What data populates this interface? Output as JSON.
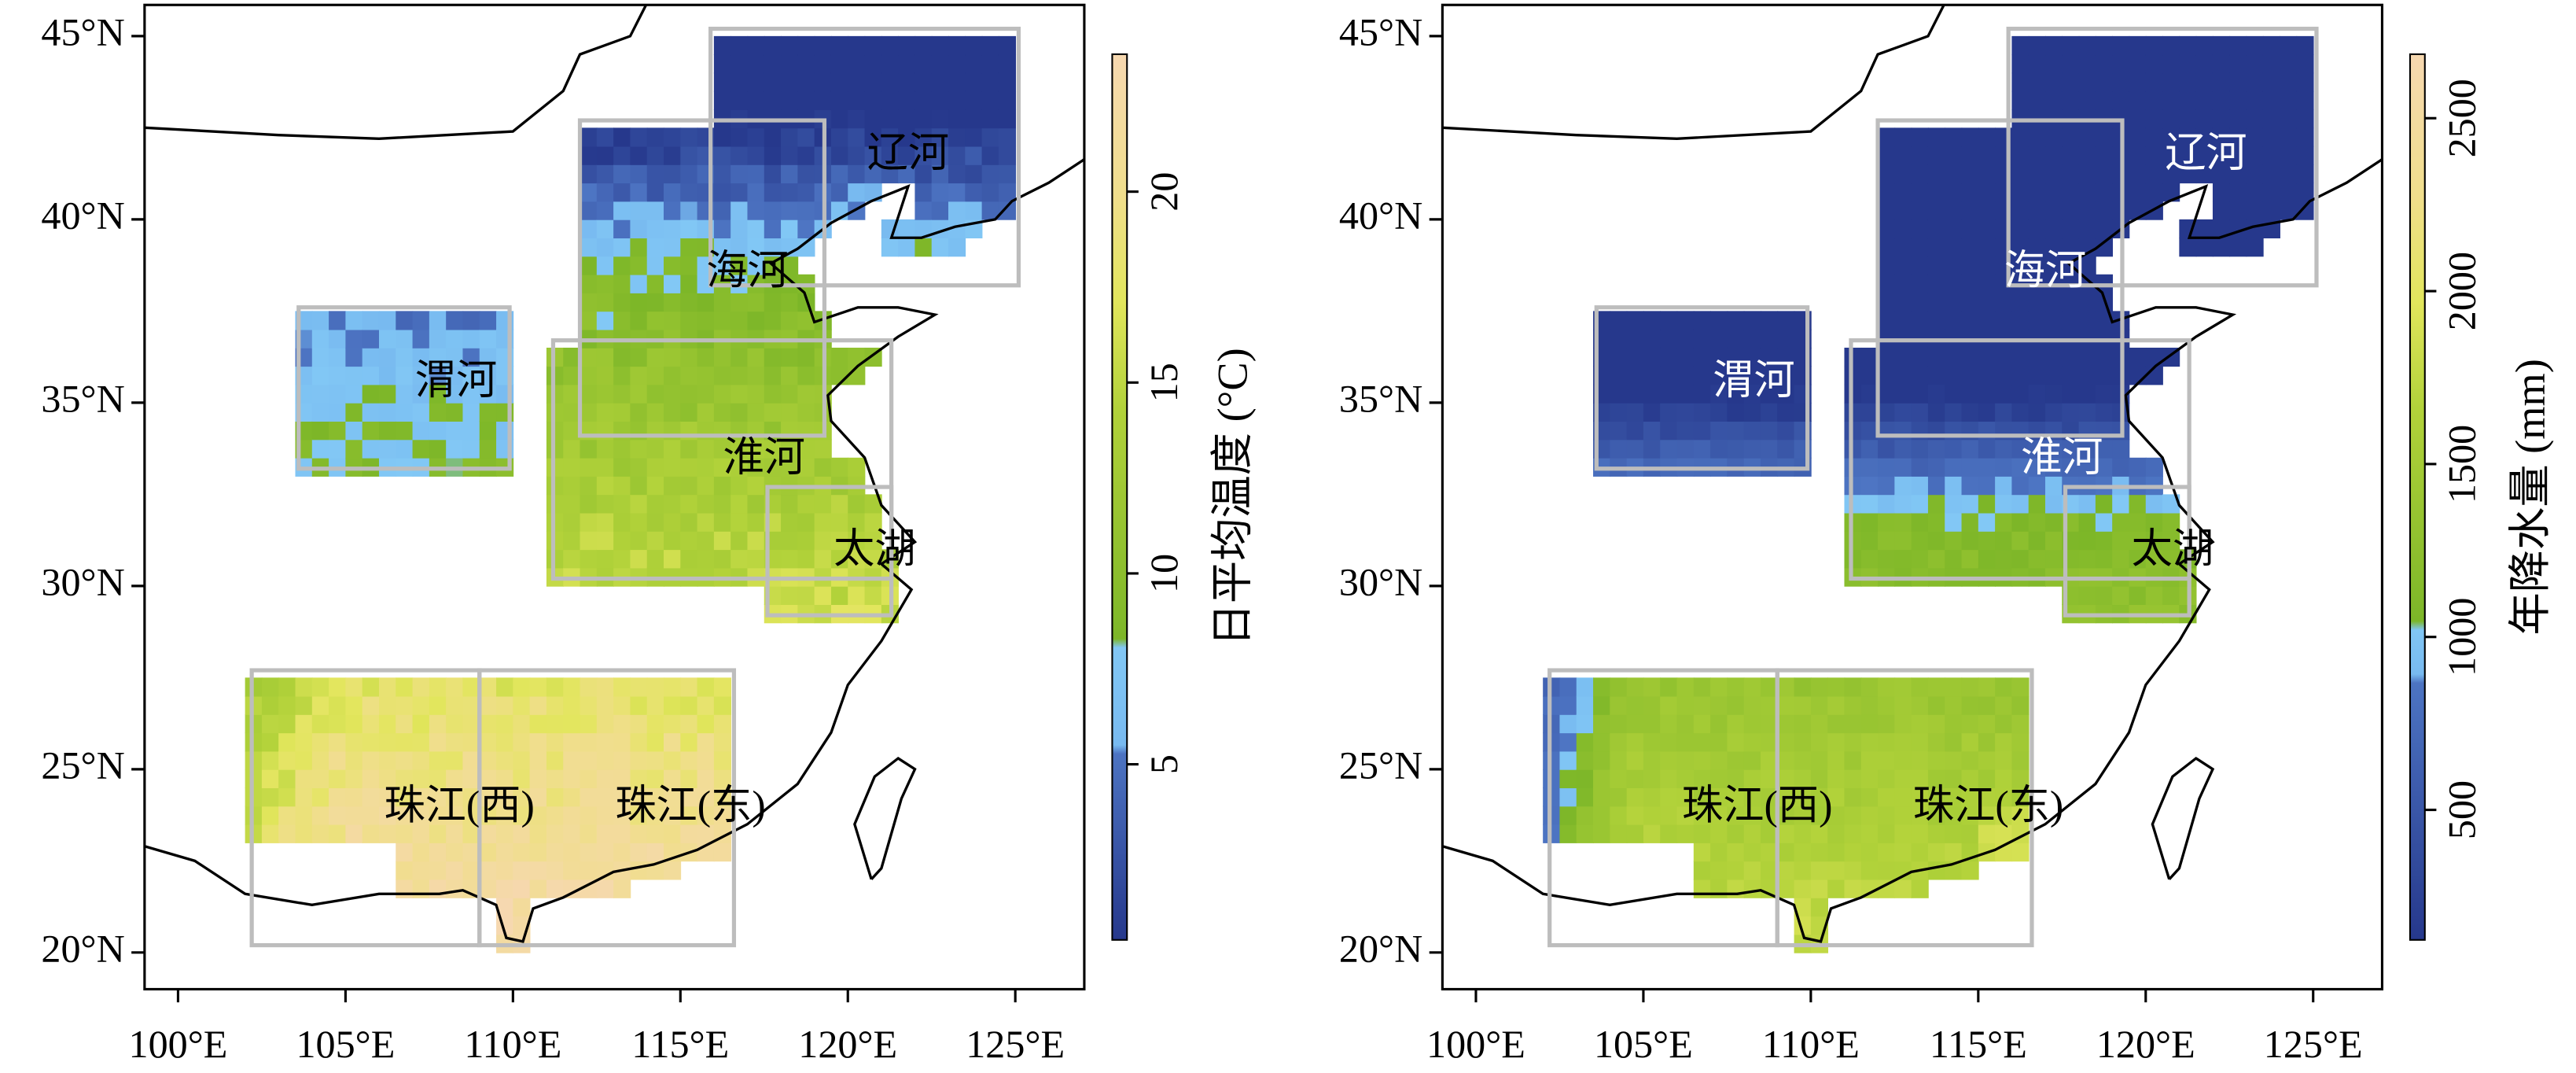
{
  "panels": [
    {
      "regions": [
        "辽河",
        "海河",
        "渭河",
        "淮河",
        "太湖",
        "珠江(西)",
        "珠江(东)"
      ],
      "colorbar": {
        "label": "日平均温度 (°C)",
        "lim": [
          0.4,
          23.6
        ],
        "ticks": [
          5,
          10,
          15,
          20
        ]
      }
    },
    {
      "regions": [
        "辽河",
        "海河",
        "渭河",
        "淮河",
        "太湖",
        "珠江(西)",
        "珠江(东)"
      ],
      "colorbar": {
        "label": "年降水量 (mm)",
        "lim": [
          124,
          2685
        ],
        "ticks": [
          500,
          1000,
          1500,
          2000,
          2500
        ]
      }
    }
  ],
  "axes": {
    "xlim": [
      99.0,
      127.06
    ],
    "ylim": [
      19.0,
      45.85
    ],
    "xticks": [
      {
        "value": 100,
        "label": "100°E"
      },
      {
        "value": 105,
        "label": "105°E"
      },
      {
        "value": 110,
        "label": "110°E"
      },
      {
        "value": 115,
        "label": "115°E"
      },
      {
        "value": 120,
        "label": "120°E"
      },
      {
        "value": 125,
        "label": "125°E"
      }
    ],
    "yticks": [
      {
        "value": 20,
        "label": "20°N"
      },
      {
        "value": 25,
        "label": "25°N"
      },
      {
        "value": 30,
        "label": "30°N"
      },
      {
        "value": 35,
        "label": "35°N"
      },
      {
        "value": 40,
        "label": "40°N"
      },
      {
        "value": 45,
        "label": "45°N"
      }
    ]
  }
}
